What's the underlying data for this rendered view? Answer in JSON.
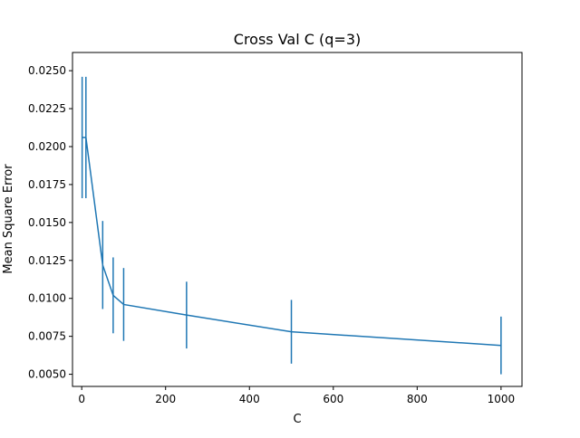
{
  "chart_data": {
    "type": "line",
    "title": "Cross Val C (q=3)",
    "xlabel": "C",
    "ylabel": "Mean Square Error",
    "xlim": [
      -22,
      1050
    ],
    "ylim": [
      0.0042,
      0.0262
    ],
    "xticks": [
      0,
      200,
      400,
      600,
      800,
      1000
    ],
    "xtick_labels": [
      "0",
      "200",
      "400",
      "600",
      "800",
      "1000"
    ],
    "yticks": [
      0.005,
      0.0075,
      0.01,
      0.0125,
      0.015,
      0.0175,
      0.02,
      0.0225,
      0.025
    ],
    "ytick_labels": [
      "0.0050",
      "0.0075",
      "0.0100",
      "0.0125",
      "0.0150",
      "0.0175",
      "0.0200",
      "0.0225",
      "0.0250"
    ],
    "grid": false,
    "series": [
      {
        "color": "#1f77b4",
        "x": [
          1,
          10,
          50,
          75,
          100,
          250,
          500,
          1000
        ],
        "y": [
          0.0206,
          0.0206,
          0.0122,
          0.0102,
          0.0096,
          0.0089,
          0.0078,
          0.0069
        ],
        "err": [
          0.004,
          0.004,
          0.0029,
          0.0025,
          0.0024,
          0.0022,
          0.0021,
          0.0019
        ]
      }
    ]
  }
}
